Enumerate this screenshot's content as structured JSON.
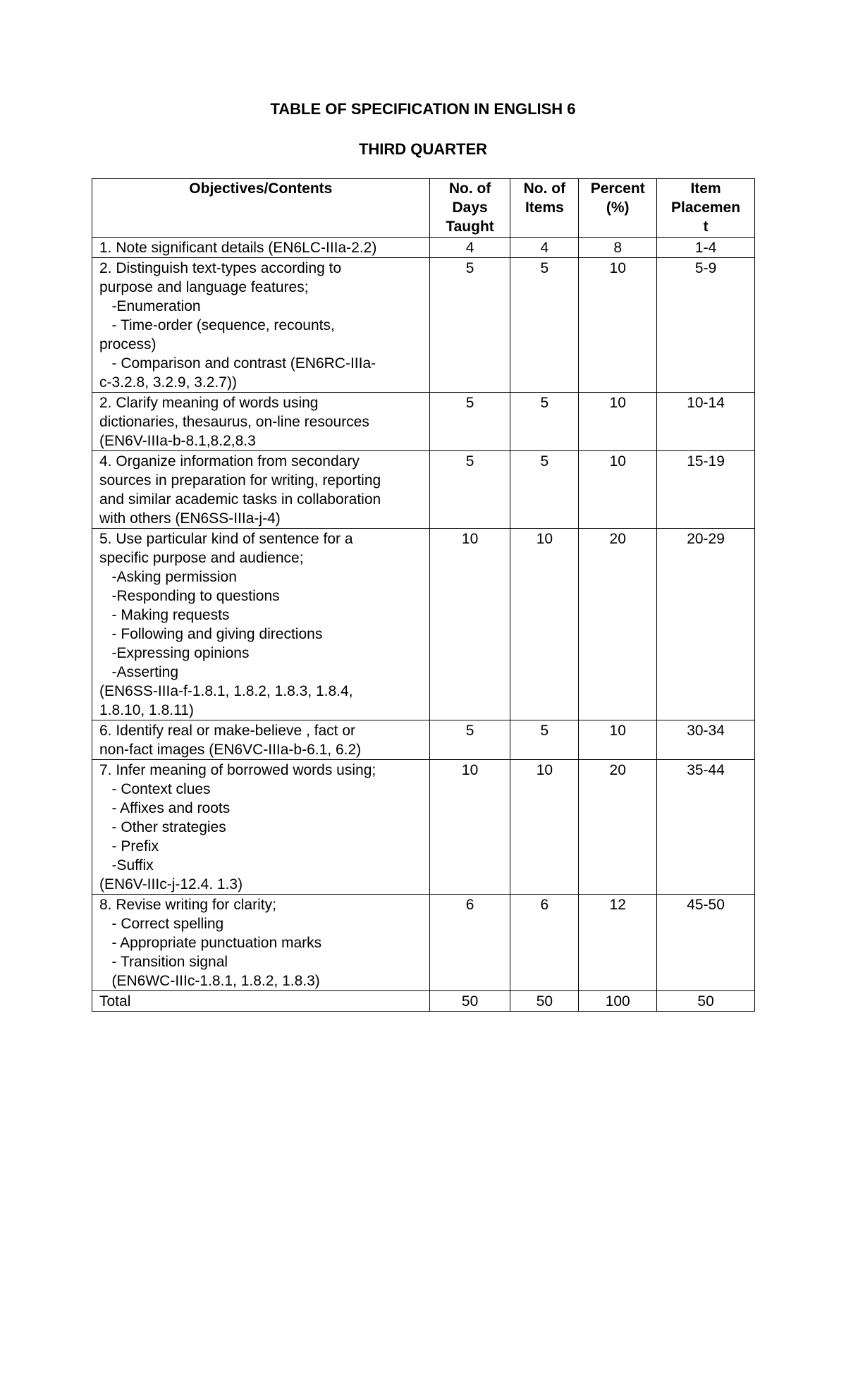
{
  "title": "TABLE OF SPECIFICATION IN ENGLISH 6",
  "subtitle": "THIRD QUARTER",
  "headers": {
    "objectives": "Objectives/Contents",
    "days": [
      "No. of",
      "Days",
      "Taught"
    ],
    "items": [
      "No. of",
      "Items"
    ],
    "percent": [
      "Percent",
      "(%)"
    ],
    "placement": [
      "Item",
      "Placemen",
      "t"
    ]
  },
  "rows": [
    {
      "lines": [
        "1. Note significant details (EN6LC-IIIa-2.2)"
      ],
      "days": "4",
      "items": "4",
      "percent": "8",
      "placement": "1-4"
    },
    {
      "lines": [
        "2. Distinguish text-types according to",
        "purpose and language features;",
        "   -Enumeration",
        "   - Time-order (sequence, recounts,",
        "process)",
        "   - Comparison and contrast (EN6RC-IIIa-",
        "c-3.2.8, 3.2.9, 3.2.7))"
      ],
      "days": "5",
      "items": "5",
      "percent": "10",
      "placement": "5-9"
    },
    {
      "lines": [
        "2. Clarify meaning of words using",
        "dictionaries, thesaurus, on-line resources",
        "(EN6V-IIIa-b-8.1,8.2,8.3"
      ],
      "days": "5",
      "items": "5",
      "percent": "10",
      "placement": "10-14"
    },
    {
      "lines": [
        "4. Organize information from secondary",
        "sources in preparation for writing, reporting",
        "and similar academic tasks in collaboration",
        "with others (EN6SS-IIIa-j-4)"
      ],
      "days": "5",
      "items": "5",
      "percent": "10",
      "placement": "15-19"
    },
    {
      "lines": [
        "5. Use particular kind of sentence for a",
        "specific purpose and audience;",
        "   -Asking permission",
        "   -Responding to questions",
        "   - Making requests",
        "   - Following and giving directions",
        "   -Expressing opinions",
        "   -Asserting",
        "(EN6SS-IIIa-f-1.8.1, 1.8.2, 1.8.3, 1.8.4,",
        "1.8.10, 1.8.11)"
      ],
      "days": "10",
      "items": "10",
      "percent": "20",
      "placement": "20-29"
    },
    {
      "lines": [
        "6. Identify real or make-believe , fact or",
        "non-fact images (EN6VC-IIIa-b-6.1, 6.2)"
      ],
      "days": "5",
      "items": "5",
      "percent": "10",
      "placement": "30-34"
    },
    {
      "lines": [
        "7. Infer meaning of borrowed words using;",
        "   - Context clues",
        "   - Affixes and roots",
        "   - Other strategies",
        "   - Prefix",
        "   -Suffix",
        "(EN6V-IIIc-j-12.4. 1.3)"
      ],
      "days": "10",
      "items": "10",
      "percent": "20",
      "placement": "35-44"
    },
    {
      "lines": [
        "8. Revise writing for clarity;",
        "   - Correct spelling",
        "   - Appropriate punctuation marks",
        "   - Transition signal",
        "   (EN6WC-IIIc-1.8.1, 1.8.2, 1.8.3)"
      ],
      "days": "6",
      "items": "6",
      "percent": "12",
      "placement": "45-50"
    },
    {
      "lines": [
        "Total"
      ],
      "days": "50",
      "items": "50",
      "percent": "100",
      "placement": "50"
    }
  ]
}
